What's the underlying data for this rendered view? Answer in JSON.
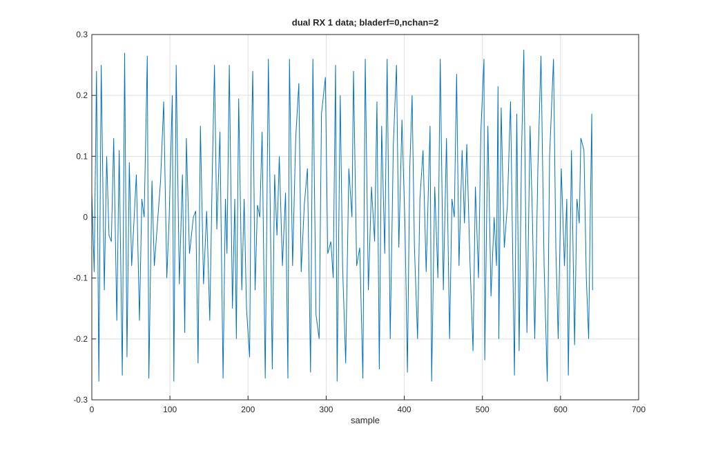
{
  "chart_data": {
    "type": "line",
    "title": "dual RX 1 data; bladerf=0,nchan=2",
    "xlabel": "sample",
    "color": "#0072bd",
    "grid": true,
    "xlim": [
      0,
      700
    ],
    "xticks": [
      0,
      100,
      200,
      300,
      400,
      500,
      600,
      700
    ],
    "ylim": [
      -0.3,
      0.3
    ],
    "yticks": [
      -0.3,
      -0.2,
      -0.1,
      0,
      0.1,
      0.2,
      0.3
    ],
    "x": [
      0,
      3,
      6,
      9,
      12,
      16,
      19,
      22,
      25,
      28,
      32,
      35,
      39,
      42,
      45,
      48,
      51,
      57,
      61,
      64,
      67,
      71,
      73,
      77,
      80,
      84,
      88,
      92,
      96,
      99,
      103,
      105,
      108,
      112,
      116,
      119,
      121,
      125,
      130,
      133,
      136,
      139,
      143,
      147,
      151,
      154,
      157,
      160,
      164,
      168,
      171,
      173,
      176,
      180,
      183,
      185,
      188,
      192,
      195,
      198,
      202,
      204,
      206,
      209,
      212,
      215,
      218,
      222,
      226,
      231,
      234,
      237,
      240,
      244,
      248,
      251,
      253,
      257,
      261,
      265,
      268,
      272,
      276,
      280,
      283,
      287,
      291,
      294,
      299,
      302,
      306,
      309,
      312,
      314,
      318,
      321,
      325,
      329,
      333,
      335,
      339,
      343,
      347,
      350,
      354,
      358,
      362,
      365,
      368,
      371,
      375,
      378,
      382,
      386,
      390,
      393,
      397,
      401,
      404,
      407,
      410,
      413,
      417,
      420,
      424,
      428,
      433,
      435,
      439,
      443,
      446,
      450,
      454,
      458,
      461,
      464,
      467,
      470,
      474,
      477,
      480,
      484,
      488,
      491,
      495,
      498,
      502,
      503,
      507,
      511,
      515,
      518,
      520,
      521,
      524,
      528,
      532,
      536,
      541,
      544,
      547,
      550,
      553,
      557,
      561,
      564,
      567,
      571,
      575,
      579,
      583,
      586,
      591,
      594,
      597,
      601,
      605,
      608,
      610,
      614,
      618,
      621,
      624,
      626,
      630,
      633,
      636,
      638,
      640,
      641
    ],
    "values": [
      0.04,
      -0.09,
      0.24,
      -0.27,
      0.25,
      -0.12,
      0.1,
      -0.03,
      -0.04,
      0.13,
      -0.17,
      0.11,
      -0.26,
      0.27,
      -0.23,
      0.09,
      -0.08,
      0.07,
      -0.17,
      0.03,
      0.0,
      0.265,
      -0.265,
      0.06,
      -0.08,
      -0.01,
      0.06,
      0.19,
      -0.1,
      0.0,
      0.2,
      -0.27,
      0.25,
      -0.11,
      0.07,
      -0.19,
      0.13,
      -0.06,
      0.0,
      0.01,
      -0.24,
      0.15,
      -0.11,
      0.01,
      -0.17,
      0.06,
      0.25,
      -0.02,
      0.14,
      -0.265,
      0.03,
      -0.06,
      0.25,
      -0.15,
      0.03,
      -0.2,
      0.195,
      -0.12,
      0.03,
      -0.15,
      -0.23,
      0.1,
      0.24,
      -0.12,
      0.02,
      0.0,
      0.14,
      -0.265,
      0.26,
      -0.25,
      0.07,
      -0.03,
      0.1,
      -0.08,
      0.04,
      -0.265,
      0.26,
      -0.08,
      0.13,
      0.22,
      -0.09,
      0.02,
      0.08,
      -0.255,
      0.26,
      -0.16,
      -0.2,
      0.17,
      0.23,
      -0.06,
      -0.04,
      -0.1,
      0.25,
      -0.27,
      0.2,
      -0.08,
      -0.24,
      0.08,
      0.0,
      0.24,
      -0.08,
      -0.05,
      -0.265,
      0.26,
      -0.12,
      0.05,
      -0.04,
      0.19,
      -0.25,
      0.15,
      -0.06,
      0.26,
      -0.2,
      0.12,
      0.25,
      -0.05,
      0.16,
      -0.02,
      -0.255,
      0.08,
      0.2,
      -0.05,
      -0.2,
      0.03,
      0.11,
      -0.09,
      0.15,
      -0.27,
      0.05,
      -0.1,
      0.26,
      -0.12,
      0.13,
      -0.2,
      0.03,
      0.0,
      0.235,
      -0.08,
      0.11,
      -0.01,
      0.12,
      -0.07,
      -0.22,
      0.05,
      -0.1,
      0.14,
      0.26,
      -0.235,
      0.15,
      -0.13,
      0.0,
      -0.08,
      0.215,
      -0.2,
      0.18,
      -0.05,
      0.02,
      0.19,
      -0.26,
      0.17,
      -0.22,
      0.1,
      0.275,
      -0.19,
      0.15,
      0.0,
      -0.2,
      0.08,
      0.265,
      -0.08,
      -0.27,
      0.1,
      0.26,
      -0.05,
      -0.2,
      0.08,
      -0.08,
      0.03,
      -0.26,
      0.11,
      -0.21,
      0.03,
      -0.01,
      0.13,
      0.11,
      -0.1,
      -0.2,
      0.0,
      0.17,
      -0.12
    ]
  }
}
